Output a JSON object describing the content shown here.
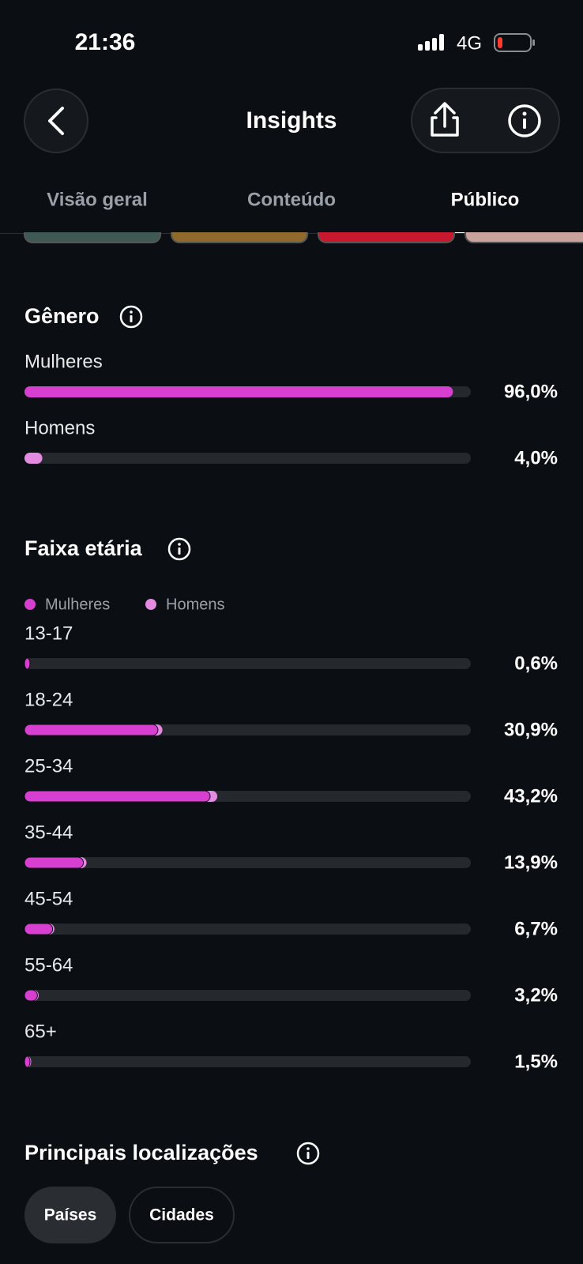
{
  "status_bar": {
    "time": "21:36",
    "network": "4G"
  },
  "header": {
    "title": "Insights"
  },
  "tabs": [
    "Visão geral",
    "Conteúdo",
    "Público"
  ],
  "gender": {
    "title": "Gênero",
    "rows": [
      {
        "label": "Mulheres",
        "value": 96.0,
        "value_label": "96,0%"
      },
      {
        "label": "Homens",
        "value": 4.0,
        "value_label": "4,0%"
      }
    ]
  },
  "age": {
    "title": "Faixa etária",
    "legend": [
      "Mulheres",
      "Homens"
    ],
    "rows": [
      {
        "label": "13-17",
        "value": 0.6,
        "value_label": "0,6%",
        "women": 0.5
      },
      {
        "label": "18-24",
        "value": 30.9,
        "value_label": "30,9%",
        "women": 29.9
      },
      {
        "label": "25-34",
        "value": 43.2,
        "value_label": "43,2%",
        "women": 41.6
      },
      {
        "label": "35-44",
        "value": 13.9,
        "value_label": "13,9%",
        "women": 13.2
      },
      {
        "label": "45-54",
        "value": 6.7,
        "value_label": "6,7%",
        "women": 6.3
      },
      {
        "label": "55-64",
        "value": 3.2,
        "value_label": "3,2%",
        "women": 2.9
      },
      {
        "label": "65+",
        "value": 1.5,
        "value_label": "1,5%",
        "women": 1.2
      }
    ]
  },
  "locations": {
    "title": "Principais localizações",
    "buttons": [
      "Países",
      "Cidades"
    ]
  }
}
